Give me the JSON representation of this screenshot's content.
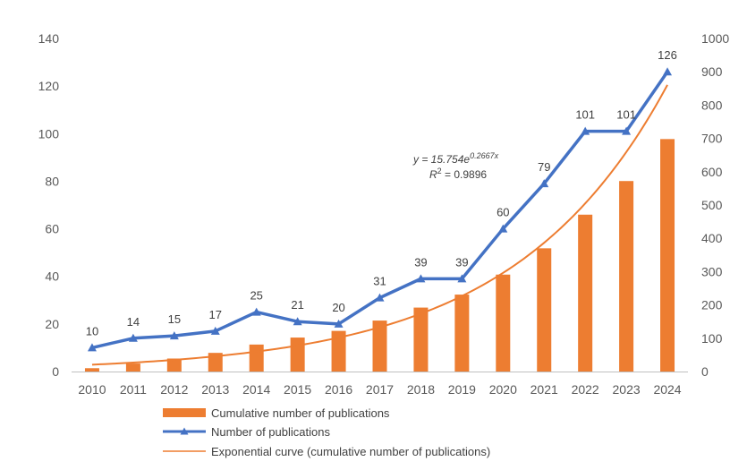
{
  "chart_data": {
    "type": "bar",
    "title": "",
    "categories": [
      "2010",
      "2011",
      "2012",
      "2013",
      "2014",
      "2015",
      "2016",
      "2017",
      "2018",
      "2019",
      "2020",
      "2021",
      "2022",
      "2023",
      "2024"
    ],
    "series": [
      {
        "name": "Cumulative number of publications",
        "type": "bar",
        "axis": "right",
        "color": "#ED7D31",
        "values": [
          10,
          24,
          39,
          56,
          81,
          102,
          122,
          153,
          192,
          231,
          291,
          370,
          471,
          572,
          698
        ]
      },
      {
        "name": "Number of publications",
        "type": "line",
        "axis": "left",
        "color": "#4472C4",
        "marker": "triangle",
        "values": [
          10,
          14,
          15,
          17,
          25,
          21,
          20,
          31,
          39,
          39,
          60,
          79,
          101,
          101,
          126
        ],
        "data_labels": [
          "10",
          "14",
          "15",
          "17",
          "25",
          "21",
          "20",
          "31",
          "39",
          "39",
          "60",
          "79",
          "101",
          "101",
          "126"
        ]
      },
      {
        "name": "Exponential curve (cumulative number of publications)",
        "type": "trendline",
        "axis": "right",
        "color": "#ED7D31",
        "model": "exponential",
        "a": 15.754,
        "b": 0.2667
      }
    ],
    "y_left": {
      "min": 0,
      "max": 140,
      "step": 20,
      "ticks": [
        "0",
        "20",
        "40",
        "60",
        "80",
        "100",
        "120",
        "140"
      ]
    },
    "y_right": {
      "min": 0,
      "max": 1000,
      "step": 100,
      "ticks": [
        "0",
        "100",
        "200",
        "300",
        "400",
        "500",
        "600",
        "700",
        "800",
        "900",
        "1000"
      ]
    },
    "xlabel": "",
    "ylabel_left": "",
    "ylabel_right": "",
    "grid": false,
    "legend_position": "bottom",
    "trendline_equation": {
      "y_prefix": "y = 15.754e",
      "exponent": "0.2667x",
      "r2_prefix": "R",
      "r2_sup": "2",
      "r2_value": " = 0.9896"
    }
  }
}
